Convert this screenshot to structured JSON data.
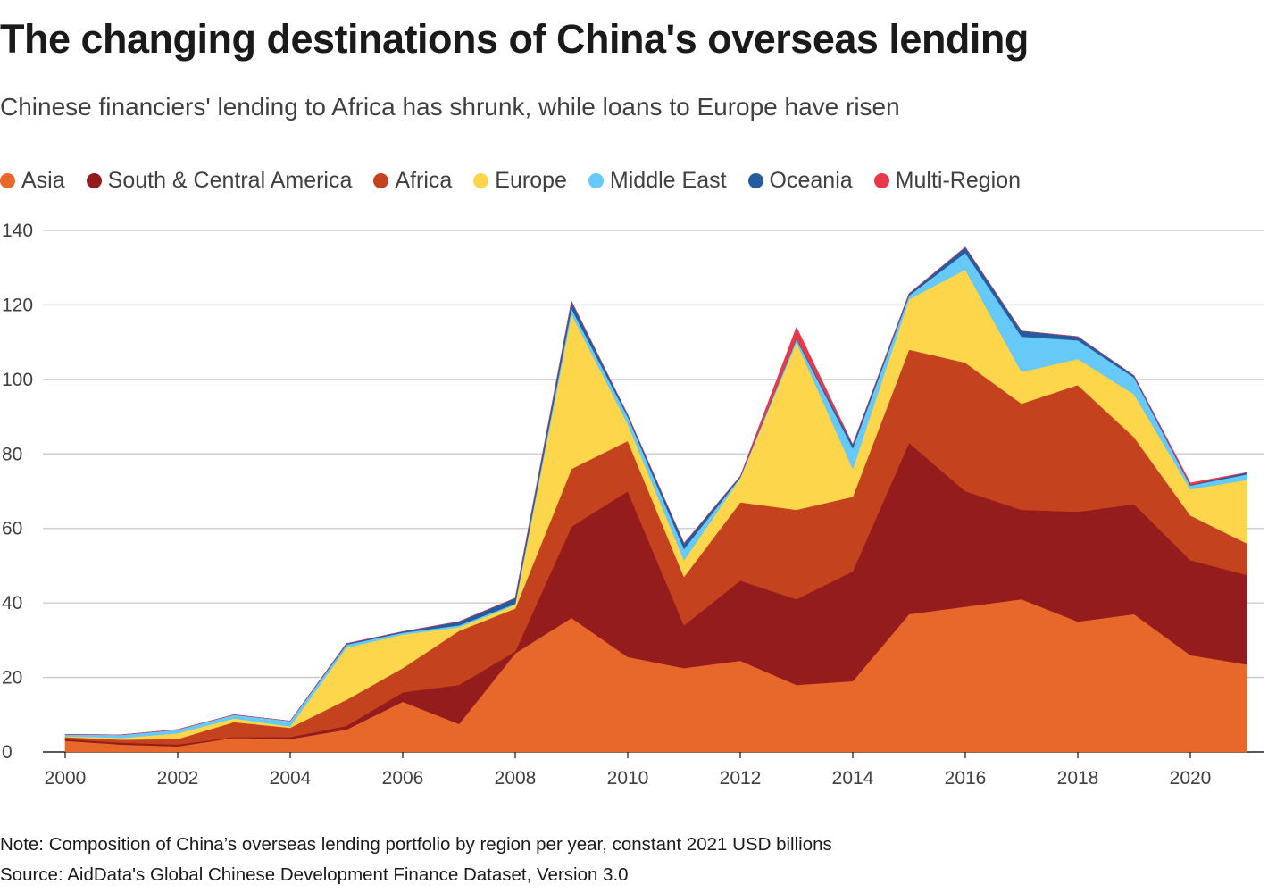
{
  "header": {
    "title": "The changing destinations of China's overseas lending",
    "subtitle": "Chinese financiers' lending to Africa has shrunk, while loans to Europe have risen"
  },
  "footer": {
    "note": "Note: Composition of China’s overseas lending portfolio by region per year, constant 2021 USD billions",
    "source": "Source: AidData's Global Chinese Development Finance Dataset, Version 3.0"
  },
  "chart_data": {
    "type": "area",
    "stacked": true,
    "title": "The changing destinations of China's overseas lending",
    "xlabel": "",
    "ylabel": "",
    "xlim": [
      2000,
      2021
    ],
    "ylim": [
      0,
      140
    ],
    "x_ticks": [
      "2000",
      "2002",
      "2004",
      "2006",
      "2008",
      "2010",
      "2012",
      "2014",
      "2016",
      "2018",
      "2020"
    ],
    "y_ticks": [
      "0",
      "20",
      "40",
      "60",
      "80",
      "100",
      "120",
      "140"
    ],
    "grid": true,
    "legend_position": "top-left",
    "x": [
      2000,
      2001,
      2002,
      2003,
      2004,
      2005,
      2006,
      2007,
      2008,
      2009,
      2010,
      2011,
      2012,
      2013,
      2014,
      2015,
      2016,
      2017,
      2018,
      2019,
      2020,
      2021
    ],
    "series": [
      {
        "name": "Asia",
        "color": "#e8672a",
        "values": [
          3.0,
          2.0,
          1.5,
          3.8,
          3.5,
          6.0,
          13.5,
          7.5,
          26.5,
          36.0,
          25.5,
          22.5,
          24.5,
          18.0,
          19.0,
          37.0,
          39.0,
          41.0,
          35.0,
          37.0,
          26.0,
          23.5
        ]
      },
      {
        "name": "South & Central America",
        "color": "#941c1c",
        "values": [
          0.5,
          0.5,
          0.5,
          0.2,
          0.5,
          1.0,
          2.5,
          10.5,
          0.5,
          24.5,
          44.5,
          11.5,
          21.5,
          23.0,
          29.5,
          46.0,
          31.0,
          24.0,
          29.5,
          29.5,
          25.5,
          24.0
        ]
      },
      {
        "name": "Africa",
        "color": "#c4421e",
        "values": [
          0.5,
          0.8,
          1.5,
          4.0,
          2.5,
          7.0,
          6.5,
          14.5,
          11.5,
          15.5,
          13.5,
          13.0,
          21.0,
          24.0,
          20.0,
          25.0,
          34.5,
          28.5,
          34.0,
          18.0,
          12.0,
          8.5
        ]
      },
      {
        "name": "Europe",
        "color": "#fdd64b",
        "values": [
          0.2,
          0.5,
          1.5,
          1.0,
          0.3,
          14.0,
          9.0,
          1.0,
          1.0,
          41.5,
          4.5,
          4.5,
          6.5,
          45.0,
          7.5,
          13.5,
          25.0,
          8.5,
          7.0,
          11.5,
          7.0,
          17.0
        ]
      },
      {
        "name": "Middle East",
        "color": "#66c9f7",
        "values": [
          0.5,
          0.8,
          1.0,
          1.0,
          1.5,
          0.8,
          0.5,
          0.5,
          0.3,
          1.5,
          2.0,
          3.0,
          0.2,
          0.8,
          5.5,
          1.0,
          4.5,
          9.5,
          5.0,
          4.5,
          1.0,
          1.5
        ]
      },
      {
        "name": "Oceania",
        "color": "#265c9e",
        "values": [
          0.0,
          0.0,
          0.0,
          0.0,
          0.0,
          0.3,
          0.3,
          1.0,
          1.5,
          2.0,
          0.5,
          1.5,
          0.3,
          0.2,
          1.0,
          0.5,
          1.5,
          1.5,
          1.0,
          0.5,
          0.2,
          0.5
        ]
      },
      {
        "name": "Multi-Region",
        "color": "#e8394c",
        "values": [
          0.0,
          0.0,
          0.0,
          0.0,
          0.0,
          0.0,
          0.0,
          0.0,
          0.0,
          0.0,
          0.0,
          0.0,
          0.0,
          3.0,
          0.0,
          0.0,
          0.0,
          0.0,
          0.0,
          0.0,
          0.5,
          0.0
        ]
      }
    ]
  }
}
